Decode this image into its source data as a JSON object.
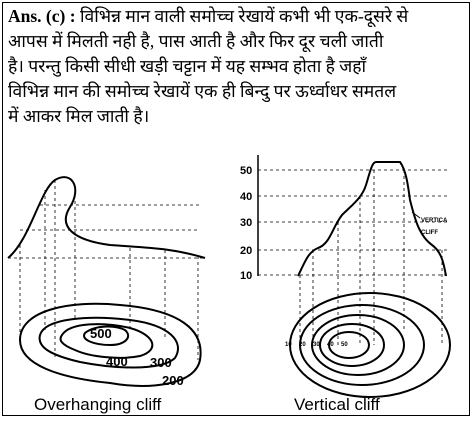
{
  "answer": {
    "label": "Ans. (c) :",
    "lines": [
      "विभिन्न मान वाली समोच्च रेखायें कभी भी एक-दूसरे से",
      "आपस में मिलती नही है, पास आती है और फिर दूर चली जाती",
      "है। परन्तु किसी सीधी खड़ी चट्टान में यह सम्भव होता है जहाँ",
      "विभिन्न मान की समोच्च रेखायें एक ही बिन्दु पर ऊर्ध्वाधर समतल",
      "में आकर मिल जाती है।"
    ]
  },
  "diagram": {
    "left": {
      "contour_labels": [
        "500",
        "400",
        "300",
        "200"
      ],
      "caption": "Overhanging cliff"
    },
    "right": {
      "axis_labels": [
        "50",
        "40",
        "30",
        "20",
        "10"
      ],
      "annotation": [
        "VERTICA",
        "CLIFF"
      ],
      "contour_labels": [
        "10",
        "20",
        "30",
        "40",
        "50"
      ],
      "caption": "Vertical cliff"
    }
  }
}
